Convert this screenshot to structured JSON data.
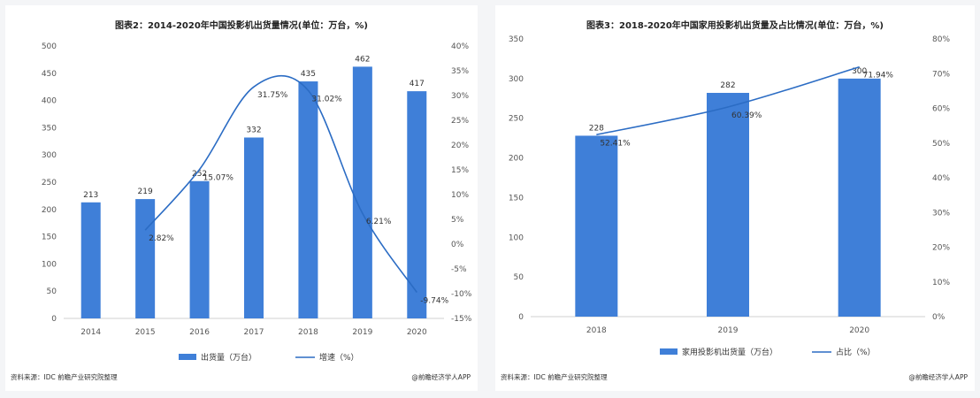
{
  "chart_data": [
    {
      "type": "bar",
      "title": "图表2：2014-2020年中国投影机出货量情况(单位：万台，%)",
      "categories": [
        "2014",
        "2015",
        "2016",
        "2017",
        "2018",
        "2019",
        "2020"
      ],
      "series": [
        {
          "name": "出货量（万台）",
          "axis": "left",
          "values": [
            213,
            219,
            252,
            332,
            435,
            462,
            417
          ],
          "labels": [
            "213",
            "219",
            "252",
            "332",
            "435",
            "462",
            "417"
          ]
        },
        {
          "name": "增速（%）",
          "axis": "right",
          "kind": "line",
          "values": [
            null,
            2.82,
            15.07,
            31.75,
            31.02,
            6.21,
            -9.74
          ],
          "labels": [
            "",
            "2.82%",
            "15.07%",
            "31.75%",
            "31.02%",
            "6.21%",
            "-9.74%"
          ]
        }
      ],
      "yticks_left": [
        "0",
        "50",
        "100",
        "150",
        "200",
        "250",
        "300",
        "350",
        "400",
        "450",
        "500"
      ],
      "ylim_left": [
        0,
        500
      ],
      "yticks_right": [
        "-15%",
        "-10%",
        "-5%",
        "0%",
        "5%",
        "10%",
        "15%",
        "20%",
        "25%",
        "30%",
        "35%",
        "40%"
      ],
      "ylim_right": [
        -15,
        40
      ],
      "legend_position": "bottom",
      "grid": false,
      "bar_color": "#3f7fd8",
      "line_color": "#2b6cc4",
      "source": "资料来源：IDC 前瞻产业研究院整理",
      "credit": "@前瞻经济学人APP"
    },
    {
      "type": "bar",
      "title": "图表3：2018-2020年中国家用投影机出货量及占比情况(单位：万台，%)",
      "categories": [
        "2018",
        "2019",
        "2020"
      ],
      "series": [
        {
          "name": "家用投影机出货量（万台）",
          "axis": "left",
          "values": [
            228,
            282,
            300
          ],
          "labels": [
            "228",
            "282",
            "300"
          ]
        },
        {
          "name": "占比（%）",
          "axis": "right",
          "kind": "line",
          "values": [
            52.41,
            60.39,
            71.94
          ],
          "labels": [
            "52.41%",
            "60.39%",
            "71.94%"
          ]
        }
      ],
      "yticks_left": [
        "0",
        "50",
        "100",
        "150",
        "200",
        "250",
        "300",
        "350"
      ],
      "ylim_left": [
        0,
        350
      ],
      "yticks_right": [
        "0%",
        "10%",
        "20%",
        "30%",
        "40%",
        "50%",
        "60%",
        "70%",
        "80%"
      ],
      "ylim_right": [
        0,
        80
      ],
      "legend_position": "bottom",
      "grid": false,
      "bar_color": "#3f7fd8",
      "line_color": "#2b6cc4",
      "source": "资料来源：IDC 前瞻产业研究院整理",
      "credit": "@前瞻经济学人APP"
    }
  ]
}
